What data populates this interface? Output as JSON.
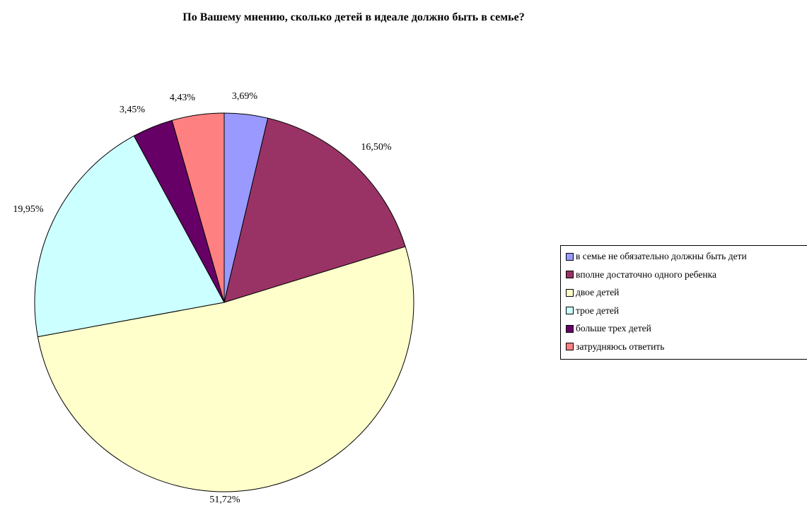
{
  "chart_data": {
    "type": "pie",
    "title": "По Вашему мнению, сколько детей в идеале должно быть в семье?",
    "categories": [
      "в семье не обязательно должны быть дети",
      "вполне достаточно одного ребенка",
      "двое детей",
      "трое детей",
      "больше трех детей",
      "затрудняюсь ответить"
    ],
    "values": [
      3.69,
      16.5,
      51.72,
      19.95,
      3.45,
      4.43
    ],
    "data_labels": [
      "3,69%",
      "16,50%",
      "51,72%",
      "19,95%",
      "3,45%",
      "4,43%"
    ],
    "colors": [
      "#9999FF",
      "#993366",
      "#FFFFCC",
      "#CCFFFF",
      "#660066",
      "#FF8080"
    ],
    "legend_position": "right"
  }
}
